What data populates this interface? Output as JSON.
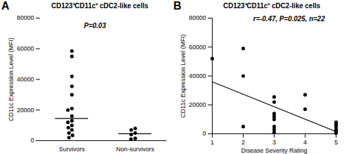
{
  "chart_data": [
    {
      "type": "strip",
      "panel_label": "A",
      "title": "CD123⁺CD11c⁺ cDC2-like cells",
      "annotation": "P=0.03",
      "y_label": "CD11c Expression Level (MFI)",
      "categories": [
        "Survivors",
        "Non-survivors"
      ],
      "values": [
        [
          58500,
          55000,
          42000,
          35500,
          30000,
          21000,
          20000,
          16000,
          13000,
          12000,
          10000,
          8500,
          7000,
          5000,
          3500,
          2000
        ],
        [
          8000,
          7000,
          5000,
          4000,
          1500,
          1000
        ]
      ],
      "medians": [
        14500,
        4500
      ],
      "ylim": [
        0,
        80000
      ],
      "yticks": [
        0,
        20000,
        40000,
        60000,
        80000
      ],
      "color": "#000000"
    },
    {
      "type": "scatter",
      "panel_label": "B",
      "title": "CD123⁺CD11c⁺ cDC2-like cells",
      "annotation": "r=-0.47, P=0.025, n=22",
      "x_label": "Disease Severity Rating",
      "y_label": "CD11c Expression Level (MFI)",
      "x": [
        1,
        2,
        2,
        2,
        3,
        3,
        3,
        3,
        3,
        3,
        3,
        3,
        4,
        4,
        5,
        5,
        5,
        5,
        5,
        5,
        5,
        5
      ],
      "values": [
        52000,
        59000,
        40000,
        5000,
        25500,
        22000,
        14000,
        12000,
        10000,
        5000,
        3000,
        1000,
        27000,
        17000,
        8000,
        7000,
        6000,
        5000,
        3000,
        2000,
        1000,
        500
      ],
      "fit": {
        "x": [
          1,
          5
        ],
        "y": [
          36000,
          1500
        ]
      },
      "xlim": [
        1,
        5
      ],
      "xticks": [
        1,
        2,
        3,
        4,
        5
      ],
      "ylim": [
        0,
        80000
      ],
      "yticks": [
        0,
        20000,
        40000,
        60000,
        80000
      ],
      "color": "#000000"
    }
  ]
}
